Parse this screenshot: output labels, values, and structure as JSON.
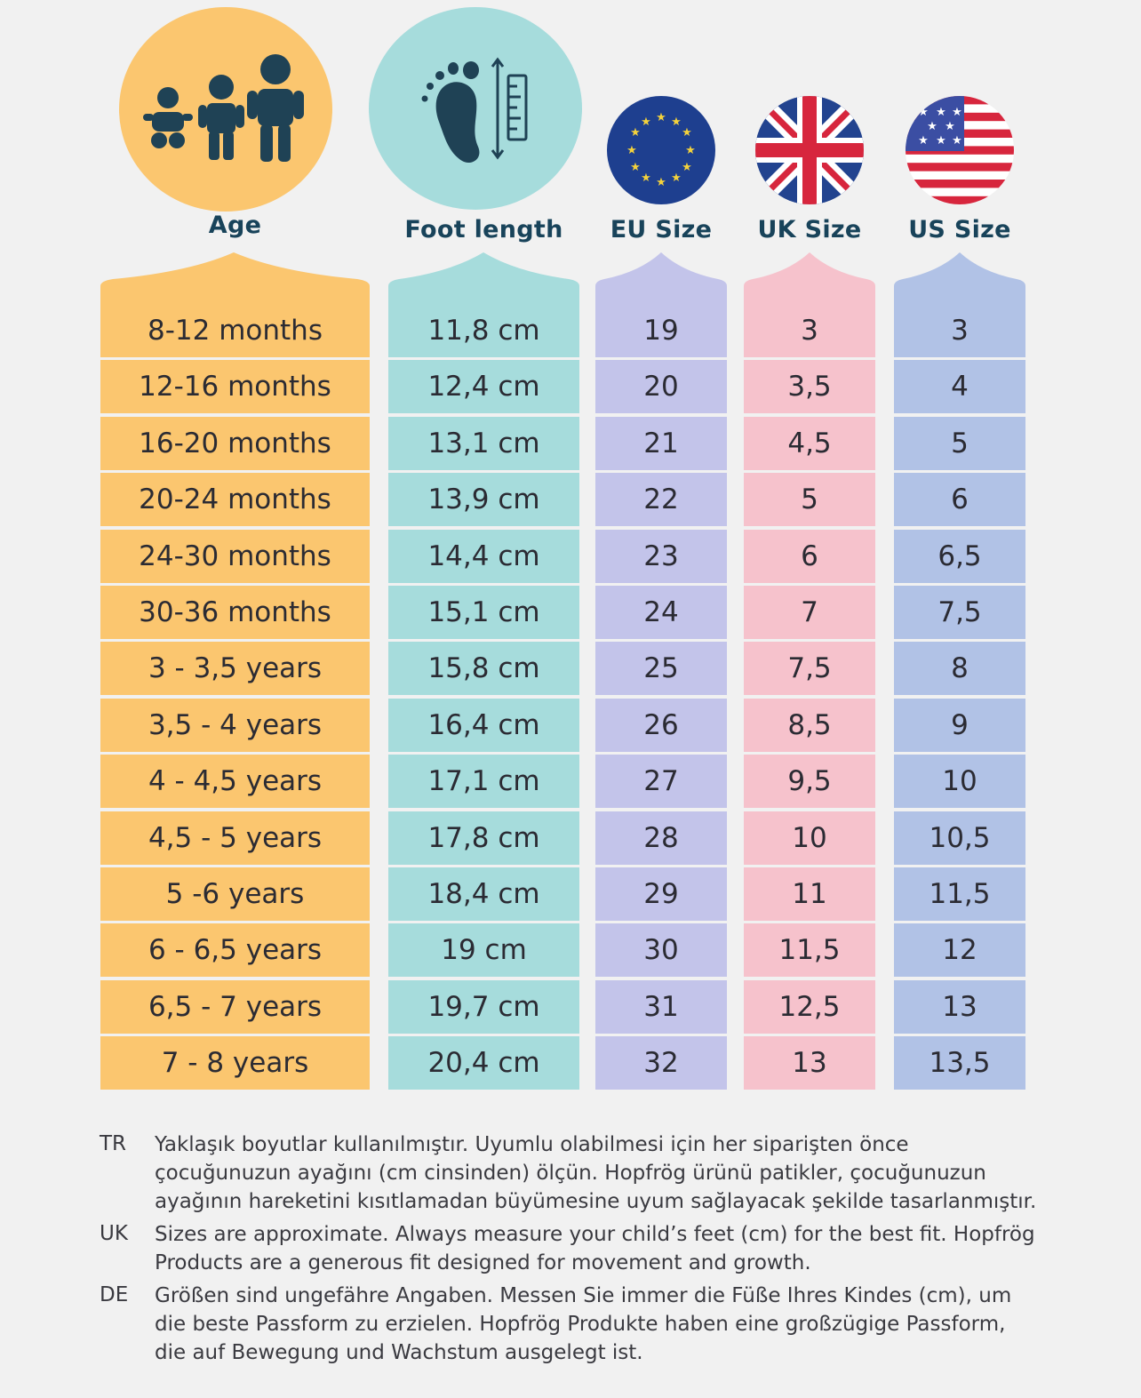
{
  "columns": [
    {
      "label": "Age",
      "color": "#fbc66f"
    },
    {
      "label": "Foot length",
      "color": "#a6dcdc"
    },
    {
      "label": "EU Size",
      "color": "#c3c4ea"
    },
    {
      "label": "UK Size",
      "color": "#f6c2cc"
    },
    {
      "label": "US Size",
      "color": "#b1c2e6"
    }
  ],
  "rows": [
    {
      "age": "8-12 months",
      "foot": "11,8 cm",
      "eu": "19",
      "uk": "3",
      "us": "3"
    },
    {
      "age": "12-16 months",
      "foot": "12,4 cm",
      "eu": "20",
      "uk": "3,5",
      "us": "4"
    },
    {
      "age": "16-20 months",
      "foot": "13,1 cm",
      "eu": "21",
      "uk": "4,5",
      "us": "5"
    },
    {
      "age": "20-24 months",
      "foot": "13,9 cm",
      "eu": "22",
      "uk": "5",
      "us": "6"
    },
    {
      "age": "24-30 months",
      "foot": "14,4 cm",
      "eu": "23",
      "uk": "6",
      "us": "6,5"
    },
    {
      "age": "30-36 months",
      "foot": "15,1 cm",
      "eu": "24",
      "uk": "7",
      "us": "7,5"
    },
    {
      "age": "3 - 3,5 years",
      "foot": "15,8 cm",
      "eu": "25",
      "uk": "7,5",
      "us": "8"
    },
    {
      "age": "3,5 - 4 years",
      "foot": "16,4 cm",
      "eu": "26",
      "uk": "8,5",
      "us": "9"
    },
    {
      "age": "4 - 4,5 years",
      "foot": "17,1 cm",
      "eu": "27",
      "uk": "9,5",
      "us": "10"
    },
    {
      "age": "4,5 - 5 years",
      "foot": "17,8 cm",
      "eu": "28",
      "uk": "10",
      "us": "10,5"
    },
    {
      "age": "5 -6 years",
      "foot": "18,4 cm",
      "eu": "29",
      "uk": "11",
      "us": "11,5"
    },
    {
      "age": "6 - 6,5 years",
      "foot": "19 cm",
      "eu": "30",
      "uk": "11,5",
      "us": "12"
    },
    {
      "age": "6,5 - 7 years",
      "foot": "19,7 cm",
      "eu": "31",
      "uk": "12,5",
      "us": "13"
    },
    {
      "age": "7 - 8 years",
      "foot": "20,4 cm",
      "eu": "32",
      "uk": "13",
      "us": "13,5"
    }
  ],
  "notes": [
    {
      "code": "TR",
      "text": "Yaklaşık boyutlar kullanılmıştır. Uyumlu olabilmesi için her siparişten önce çocuğunuzun ayağını (cm cinsinden) ölçün. Hopfrög ürünü patikler, çocuğunuzun ayağının hareketini kısıtlamadan büyümesine uyum sağlayacak şekilde tasarlanmıştır."
    },
    {
      "code": "UK",
      "text": "Sizes are approximate. Always measure your child’s feet (cm) for the best fit. Hopfrög Products are a generous fit designed for movement and growth."
    },
    {
      "code": "DE",
      "text": "Größen sind ungefähre Angaben. Messen Sie immer die Füße Ihres Kindes (cm), um die beste Passform zu erzielen. Hopfrög Produkte haben eine großzügige Passform, die auf Bewegung und Wachstum ausgelegt ist."
    }
  ],
  "icons": [
    "children-icon",
    "foot-ruler-icon",
    "eu-flag-icon",
    "uk-flag-icon",
    "us-flag-icon"
  ]
}
